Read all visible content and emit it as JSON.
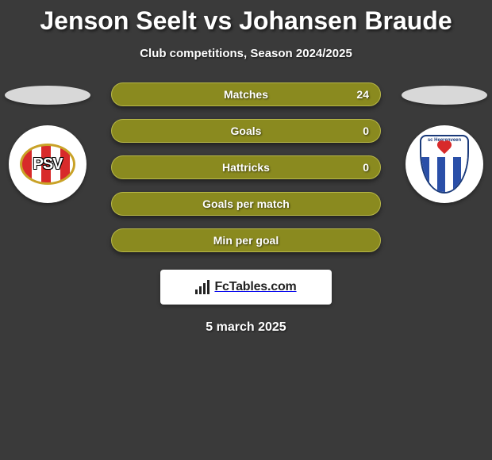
{
  "title": "Jenson Seelt vs Johansen Braude",
  "subtitle": "Club competitions, Season 2024/2025",
  "left_team": {
    "short": "PSV"
  },
  "right_team": {
    "short": "sc Heerenveen"
  },
  "stats": [
    {
      "label": "Matches",
      "value": "24"
    },
    {
      "label": "Goals",
      "value": "0"
    },
    {
      "label": "Hattricks",
      "value": "0"
    },
    {
      "label": "Goals per match",
      "value": ""
    },
    {
      "label": "Min per goal",
      "value": ""
    }
  ],
  "footer_brand": "FcTables.com",
  "date": "5 march 2025",
  "colors": {
    "background": "#3a3a3a",
    "pill_bg": "#8a8a1f",
    "pill_border": "#b8b848",
    "text": "#ffffff"
  }
}
